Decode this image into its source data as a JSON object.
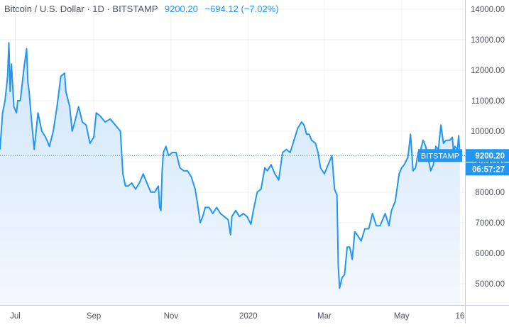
{
  "header": {
    "title": "Bitcoin / U.S. Dollar · 1D · BITSTAMP",
    "price": "9200.20",
    "change": "−694.12 (−7.02%)"
  },
  "price_marker": {
    "label": "BITSTAMP",
    "value": "9200.20",
    "countdown": "06:57:27"
  },
  "colors": {
    "line": "#2196f3",
    "fill_top": "#cfe5fb",
    "fill_bottom": "#f3f8fe",
    "grid": "#eef0f3",
    "axis_text": "#50535e",
    "marker_bg": "#2196f3"
  },
  "chart_data": {
    "type": "area",
    "title": "",
    "xlabel": "",
    "ylabel": "",
    "ylim": [
      4300,
      14300
    ],
    "yticks": [
      5000,
      6000,
      7000,
      8000,
      9000,
      10000,
      11000,
      12000,
      13000,
      14000
    ],
    "ytick_labels": [
      "5000.00",
      "6000.00",
      "7000.00",
      "8000.00",
      "9000.00",
      "10000.00",
      "11000.00",
      "12000.00",
      "13000.00",
      "14000.00"
    ],
    "xticks": [
      {
        "date": "2019-07-01",
        "label": "Jul"
      },
      {
        "date": "2019-09-01",
        "label": "Sep"
      },
      {
        "date": "2019-11-01",
        "label": "Nov"
      },
      {
        "date": "2020-01-01",
        "label": "2020"
      },
      {
        "date": "2020-03-01",
        "label": "Mar"
      },
      {
        "date": "2020-05-01",
        "label": "May"
      },
      {
        "date": "2020-06-16",
        "label": "16"
      }
    ],
    "xlim": [
      "2019-06-19",
      "2020-06-20"
    ],
    "grid": true,
    "last_value": 9200.2,
    "series": [
      {
        "points": [
          [
            "2019-06-19",
            9400
          ],
          [
            "2019-06-21",
            10600
          ],
          [
            "2019-06-23",
            11000
          ],
          [
            "2019-06-25",
            11800
          ],
          [
            "2019-06-26",
            12900
          ],
          [
            "2019-06-27",
            11300
          ],
          [
            "2019-06-28",
            12200
          ],
          [
            "2019-06-30",
            10800
          ],
          [
            "2019-07-02",
            10600
          ],
          [
            "2019-07-03",
            11000
          ],
          [
            "2019-07-05",
            11000
          ],
          [
            "2019-07-08",
            12100
          ],
          [
            "2019-07-10",
            12700
          ],
          [
            "2019-07-11",
            11600
          ],
          [
            "2019-07-12",
            11300
          ],
          [
            "2019-07-14",
            10300
          ],
          [
            "2019-07-16",
            9400
          ],
          [
            "2019-07-17",
            9800
          ],
          [
            "2019-07-19",
            10600
          ],
          [
            "2019-07-22",
            10000
          ],
          [
            "2019-07-25",
            9800
          ],
          [
            "2019-07-28",
            9500
          ],
          [
            "2019-07-31",
            10000
          ],
          [
            "2019-08-03",
            10800
          ],
          [
            "2019-08-06",
            11800
          ],
          [
            "2019-08-09",
            11900
          ],
          [
            "2019-08-10",
            11300
          ],
          [
            "2019-08-13",
            10800
          ],
          [
            "2019-08-15",
            10000
          ],
          [
            "2019-08-17",
            10300
          ],
          [
            "2019-08-20",
            10800
          ],
          [
            "2019-08-23",
            10300
          ],
          [
            "2019-08-26",
            10200
          ],
          [
            "2019-08-29",
            9600
          ],
          [
            "2019-09-01",
            9800
          ],
          [
            "2019-09-03",
            10600
          ],
          [
            "2019-09-06",
            10500
          ],
          [
            "2019-09-10",
            10300
          ],
          [
            "2019-09-14",
            10400
          ],
          [
            "2019-09-18",
            10200
          ],
          [
            "2019-09-22",
            10000
          ],
          [
            "2019-09-24",
            8600
          ],
          [
            "2019-09-26",
            8200
          ],
          [
            "2019-09-28",
            8200
          ],
          [
            "2019-10-01",
            8300
          ],
          [
            "2019-10-04",
            8100
          ],
          [
            "2019-10-07",
            8300
          ],
          [
            "2019-10-10",
            8600
          ],
          [
            "2019-10-13",
            8300
          ],
          [
            "2019-10-16",
            8000
          ],
          [
            "2019-10-19",
            8000
          ],
          [
            "2019-10-22",
            8200
          ],
          [
            "2019-10-23",
            7500
          ],
          [
            "2019-10-24",
            7400
          ],
          [
            "2019-10-25",
            8700
          ],
          [
            "2019-10-26",
            9300
          ],
          [
            "2019-10-28",
            9500
          ],
          [
            "2019-10-30",
            9200
          ],
          [
            "2019-11-02",
            9300
          ],
          [
            "2019-11-05",
            9300
          ],
          [
            "2019-11-08",
            8800
          ],
          [
            "2019-11-11",
            8700
          ],
          [
            "2019-11-14",
            8700
          ],
          [
            "2019-11-17",
            8500
          ],
          [
            "2019-11-20",
            8100
          ],
          [
            "2019-11-22",
            7600
          ],
          [
            "2019-11-24",
            7000
          ],
          [
            "2019-11-26",
            7200
          ],
          [
            "2019-11-28",
            7500
          ],
          [
            "2019-12-01",
            7500
          ],
          [
            "2019-12-04",
            7300
          ],
          [
            "2019-12-07",
            7500
          ],
          [
            "2019-12-10",
            7300
          ],
          [
            "2019-12-13",
            7200
          ],
          [
            "2019-12-16",
            7100
          ],
          [
            "2019-12-18",
            6600
          ],
          [
            "2019-12-19",
            7200
          ],
          [
            "2019-12-22",
            7400
          ],
          [
            "2019-12-25",
            7200
          ],
          [
            "2019-12-28",
            7300
          ],
          [
            "2019-12-31",
            7200
          ],
          [
            "2020-01-03",
            6950
          ],
          [
            "2020-01-05",
            7400
          ],
          [
            "2020-01-08",
            8000
          ],
          [
            "2020-01-11",
            8100
          ],
          [
            "2020-01-14",
            8800
          ],
          [
            "2020-01-16",
            8700
          ],
          [
            "2020-01-19",
            8900
          ],
          [
            "2020-01-22",
            8600
          ],
          [
            "2020-01-25",
            8400
          ],
          [
            "2020-01-28",
            9300
          ],
          [
            "2020-01-31",
            9400
          ],
          [
            "2020-02-03",
            9300
          ],
          [
            "2020-02-06",
            9700
          ],
          [
            "2020-02-09",
            10100
          ],
          [
            "2020-02-12",
            10300
          ],
          [
            "2020-02-14",
            10200
          ],
          [
            "2020-02-16",
            9900
          ],
          [
            "2020-02-18",
            9900
          ],
          [
            "2020-02-20",
            9700
          ],
          [
            "2020-02-23",
            9600
          ],
          [
            "2020-02-25",
            9300
          ],
          [
            "2020-02-27",
            8800
          ],
          [
            "2020-03-01",
            8600
          ],
          [
            "2020-03-04",
            8900
          ],
          [
            "2020-03-07",
            9200
          ],
          [
            "2020-03-09",
            8100
          ],
          [
            "2020-03-11",
            7900
          ],
          [
            "2020-03-12",
            5600
          ],
          [
            "2020-03-13",
            4850
          ],
          [
            "2020-03-15",
            5200
          ],
          [
            "2020-03-17",
            5300
          ],
          [
            "2020-03-19",
            6200
          ],
          [
            "2020-03-21",
            6200
          ],
          [
            "2020-03-23",
            5800
          ],
          [
            "2020-03-25",
            6700
          ],
          [
            "2020-03-27",
            6600
          ],
          [
            "2020-03-30",
            6400
          ],
          [
            "2020-04-02",
            6800
          ],
          [
            "2020-04-05",
            6800
          ],
          [
            "2020-04-08",
            7300
          ],
          [
            "2020-04-11",
            6900
          ],
          [
            "2020-04-14",
            6900
          ],
          [
            "2020-04-16",
            7100
          ],
          [
            "2020-04-18",
            7300
          ],
          [
            "2020-04-21",
            6900
          ],
          [
            "2020-04-23",
            7400
          ],
          [
            "2020-04-26",
            7700
          ],
          [
            "2020-04-29",
            8600
          ],
          [
            "2020-05-01",
            8800
          ],
          [
            "2020-05-03",
            8900
          ],
          [
            "2020-05-06",
            9150
          ],
          [
            "2020-05-08",
            9900
          ],
          [
            "2020-05-10",
            8700
          ],
          [
            "2020-05-12",
            8800
          ],
          [
            "2020-05-14",
            9300
          ],
          [
            "2020-05-16",
            9400
          ],
          [
            "2020-05-18",
            9700
          ],
          [
            "2020-05-20",
            9500
          ],
          [
            "2020-05-22",
            9100
          ],
          [
            "2020-05-24",
            8700
          ],
          [
            "2020-05-26",
            8900
          ],
          [
            "2020-05-28",
            9500
          ],
          [
            "2020-05-30",
            9400
          ],
          [
            "2020-06-01",
            10200
          ],
          [
            "2020-06-03",
            9600
          ],
          [
            "2020-06-05",
            9700
          ],
          [
            "2020-06-08",
            9700
          ],
          [
            "2020-06-10",
            9800
          ],
          [
            "2020-06-11",
            9300
          ],
          [
            "2020-06-12",
            9500
          ],
          [
            "2020-06-14",
            9400
          ],
          [
            "2020-06-15",
            9850
          ],
          [
            "2020-06-16",
            9200
          ]
        ]
      }
    ]
  }
}
